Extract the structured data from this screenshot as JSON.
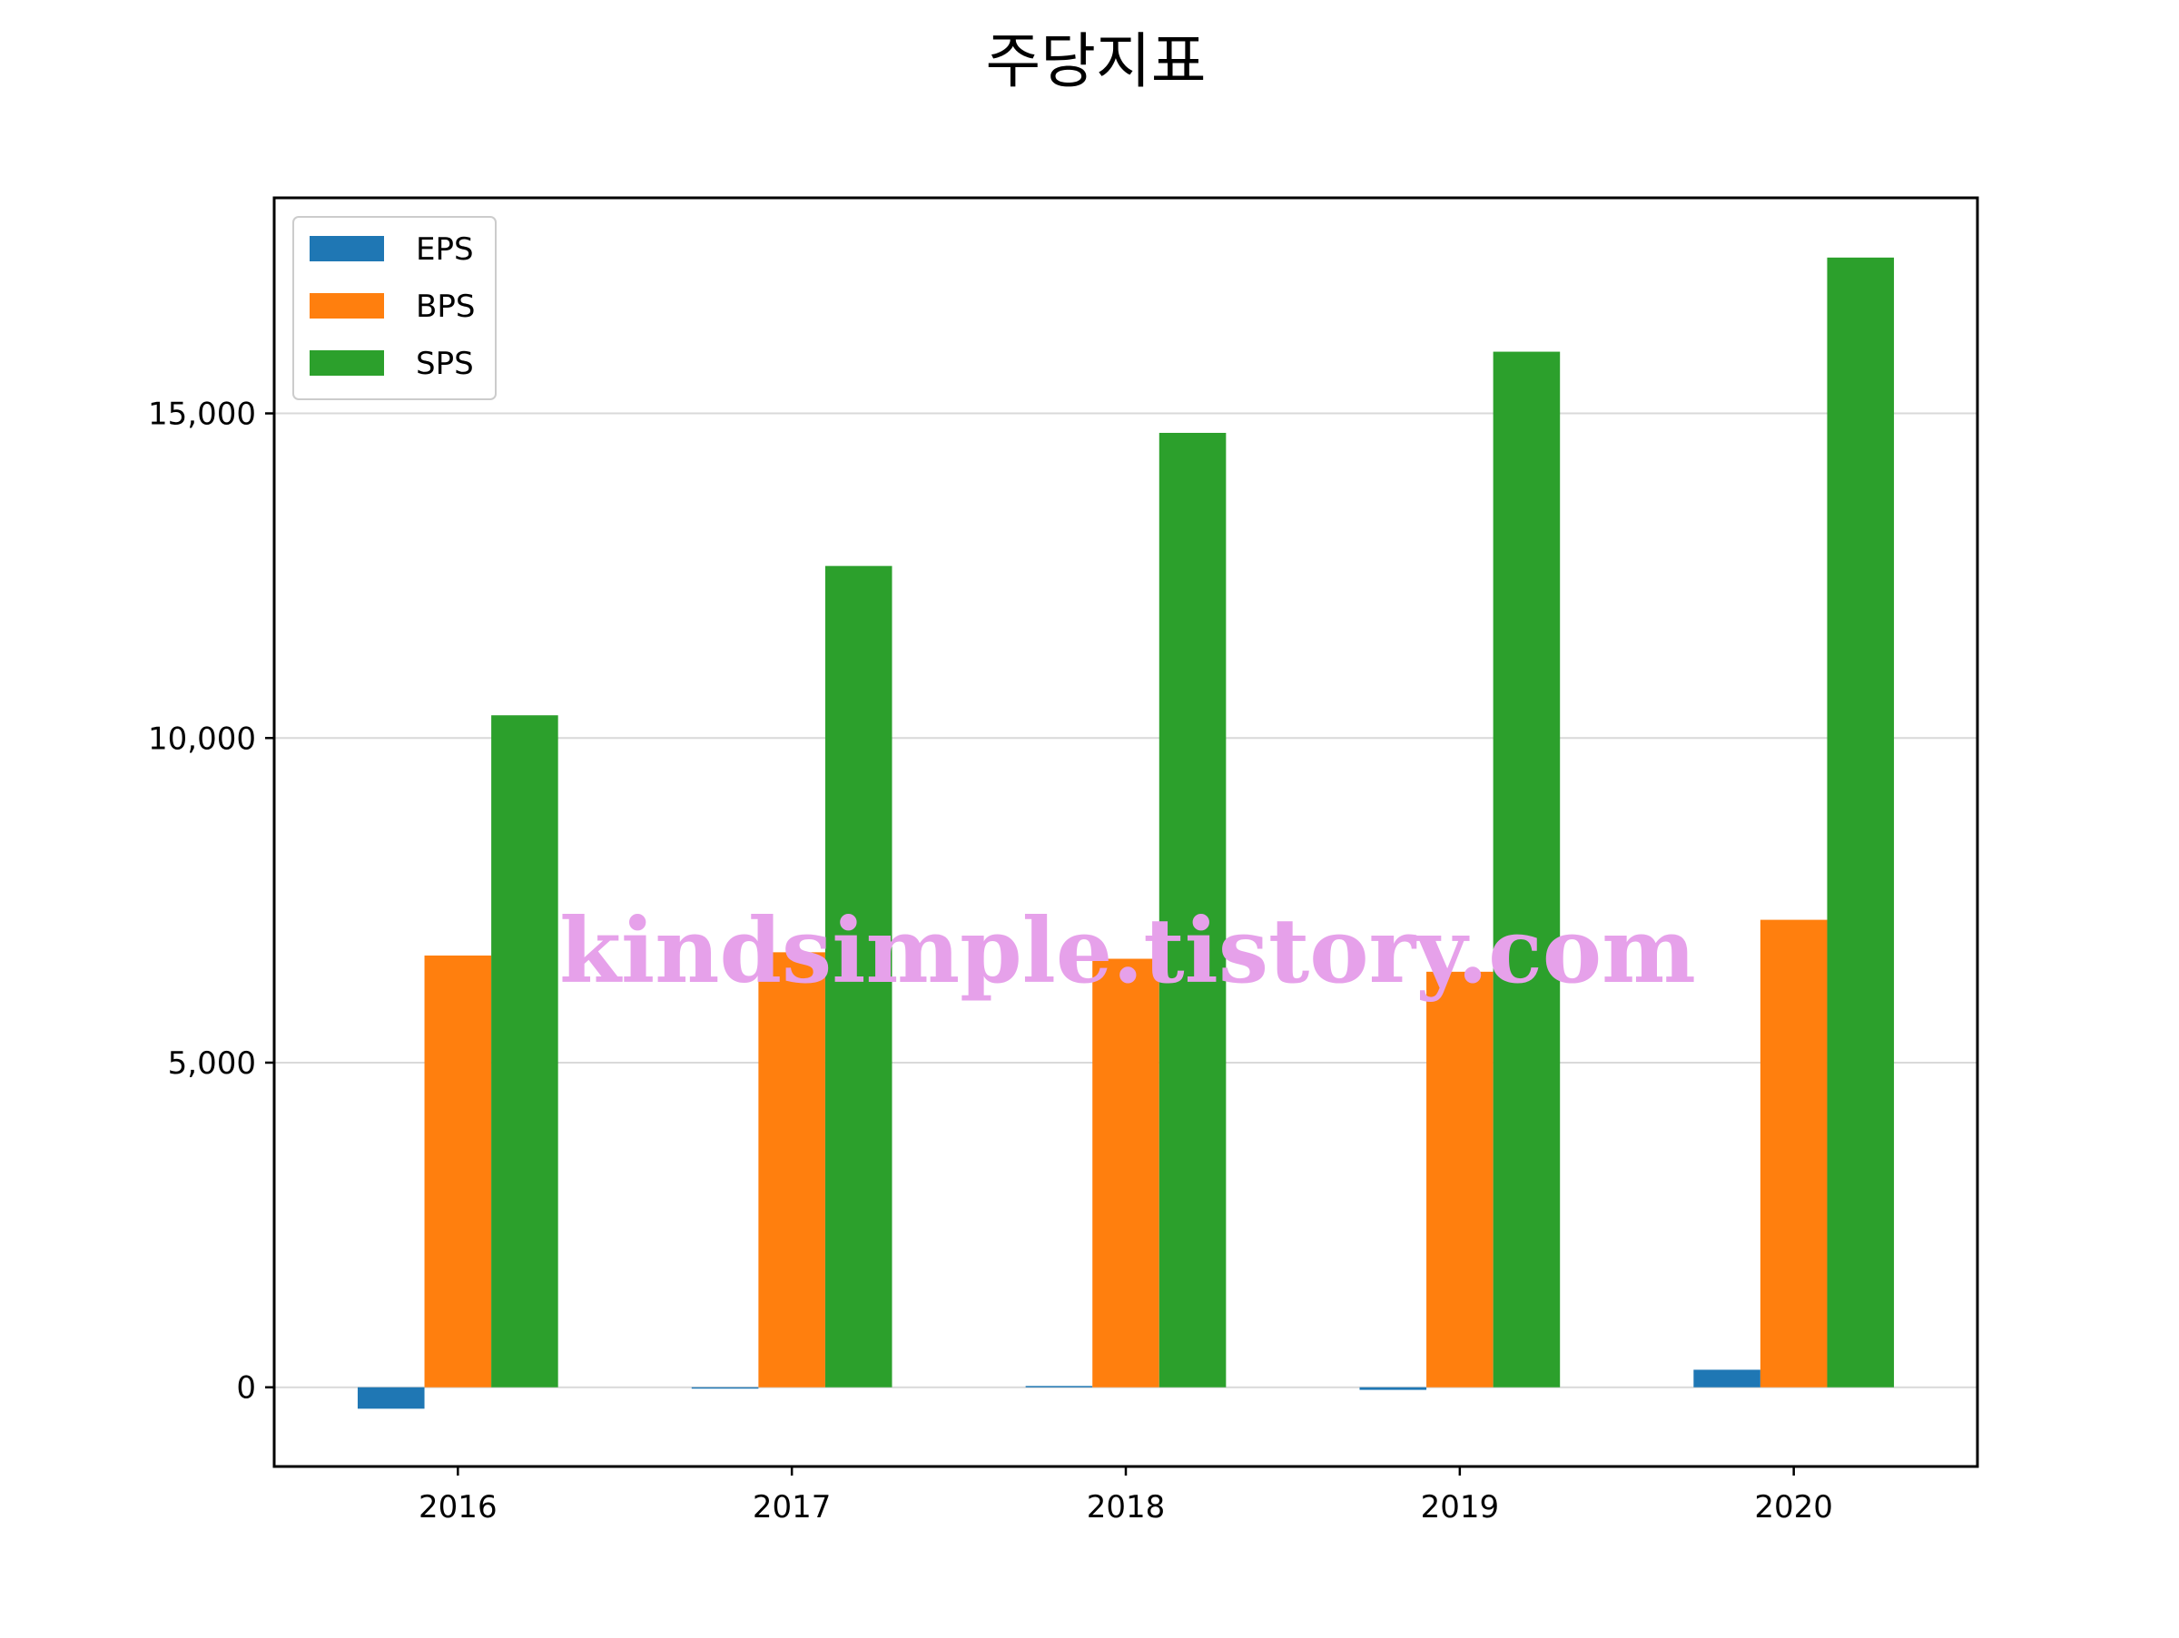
{
  "chart_data": {
    "type": "bar",
    "title": "주당지표",
    "xlabel": "",
    "ylabel": "",
    "categories": [
      "2016",
      "2017",
      "2018",
      "2019",
      "2020"
    ],
    "series": [
      {
        "name": "EPS",
        "color": "#1f77b4",
        "values": [
          -330,
          0,
          20,
          -40,
          270
        ]
      },
      {
        "name": "BPS",
        "color": "#ff7f0e",
        "values": [
          6650,
          6700,
          6600,
          6400,
          7200
        ]
      },
      {
        "name": "SPS",
        "color": "#2ca02c",
        "values": [
          10350,
          12650,
          14700,
          15950,
          17400
        ]
      }
    ],
    "ylim": [
      -1220,
      18320
    ],
    "yticks": [
      0,
      5000,
      10000,
      15000
    ],
    "ytick_labels": [
      "0",
      "5,000",
      "10,000",
      "15,000"
    ],
    "grid": "horizontal",
    "legend_position": "top-left",
    "watermark": "kindsimple.tistory.com"
  }
}
